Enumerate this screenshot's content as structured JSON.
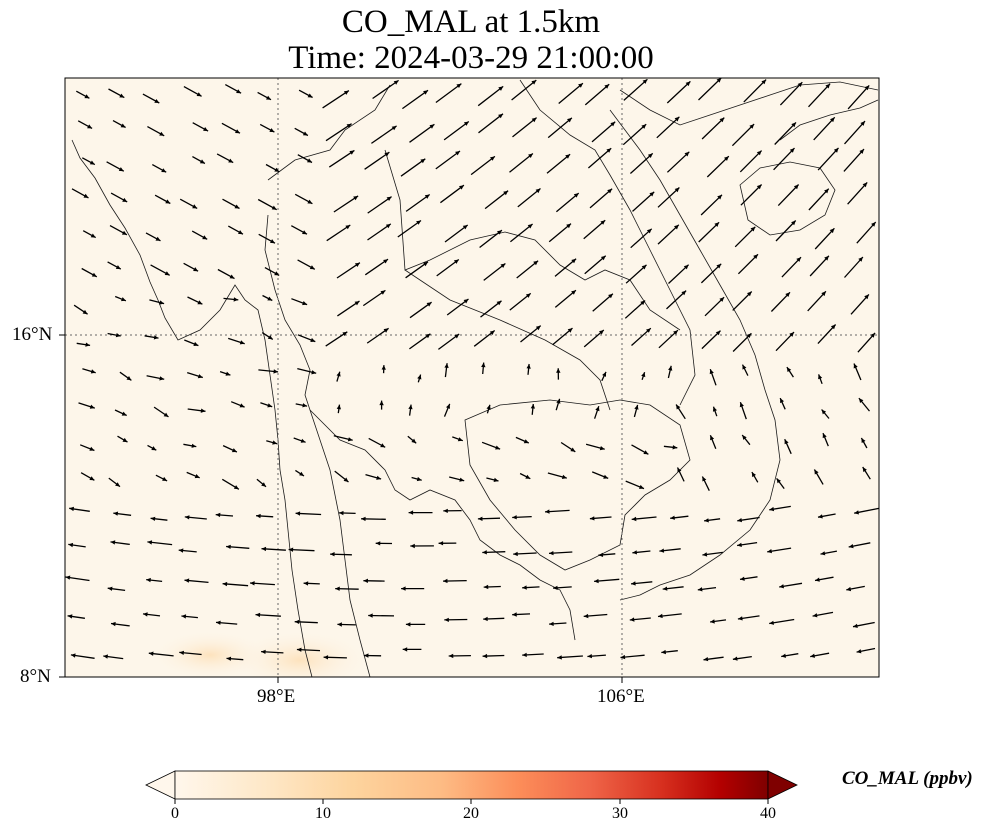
{
  "title_line1": "CO_MAL at 1.5km",
  "title_line2": "Time: 2024-03-29 21:00:00",
  "axes": {
    "lat_labels": [
      "16°N",
      "8°N"
    ],
    "lon_labels": [
      "98°E",
      "106°E"
    ],
    "gridline_style": "dotted"
  },
  "colorbar": {
    "label": "CO_MAL (ppbv)",
    "ticks": [
      "0",
      "10",
      "20",
      "30",
      "40"
    ],
    "colormap": "OrRd",
    "extend": "both",
    "colors": [
      "#fff7ec",
      "#fee8c8",
      "#fdd49e",
      "#fdbb84",
      "#fc8d59",
      "#ef6548",
      "#d7301f",
      "#b30000",
      "#7f0000"
    ]
  },
  "field_colors": {
    "background": "#fdf6ea",
    "land_outline": "#1a1a1a",
    "wind_arrow": "#000000"
  }
}
